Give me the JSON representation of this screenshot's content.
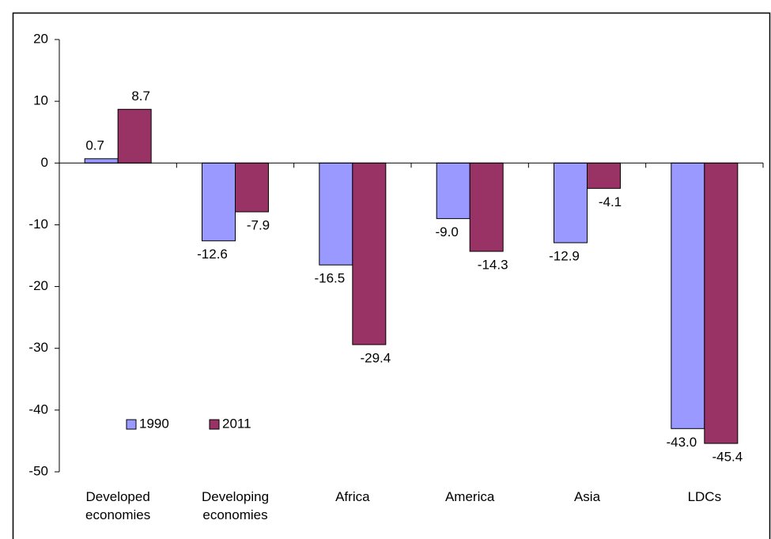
{
  "chart_data": {
    "type": "bar",
    "categories": [
      "Developed economies",
      "Developing economies",
      "Africa",
      "America",
      "Asia",
      "LDCs"
    ],
    "series": [
      {
        "name": "1990",
        "color": "#9999ff",
        "values": [
          0.7,
          -12.6,
          -16.5,
          -9.0,
          -12.9,
          -43.0
        ],
        "value_labels": [
          "0.7",
          "-12.6",
          "-16.5",
          "-9.0",
          "-12.9",
          "-43.0"
        ]
      },
      {
        "name": "2011",
        "color": "#993366",
        "values": [
          8.7,
          -7.9,
          -29.4,
          -14.3,
          -4.1,
          -45.4
        ],
        "value_labels": [
          "8.7",
          "-7.9",
          "-29.4",
          "-14.3",
          "-4.1",
          "-45.4"
        ]
      }
    ],
    "ylim": [
      -50,
      20
    ],
    "yticks": [
      -50,
      -40,
      -30,
      -20,
      -10,
      0,
      10,
      20
    ],
    "grid": false,
    "legend": "lower left"
  }
}
